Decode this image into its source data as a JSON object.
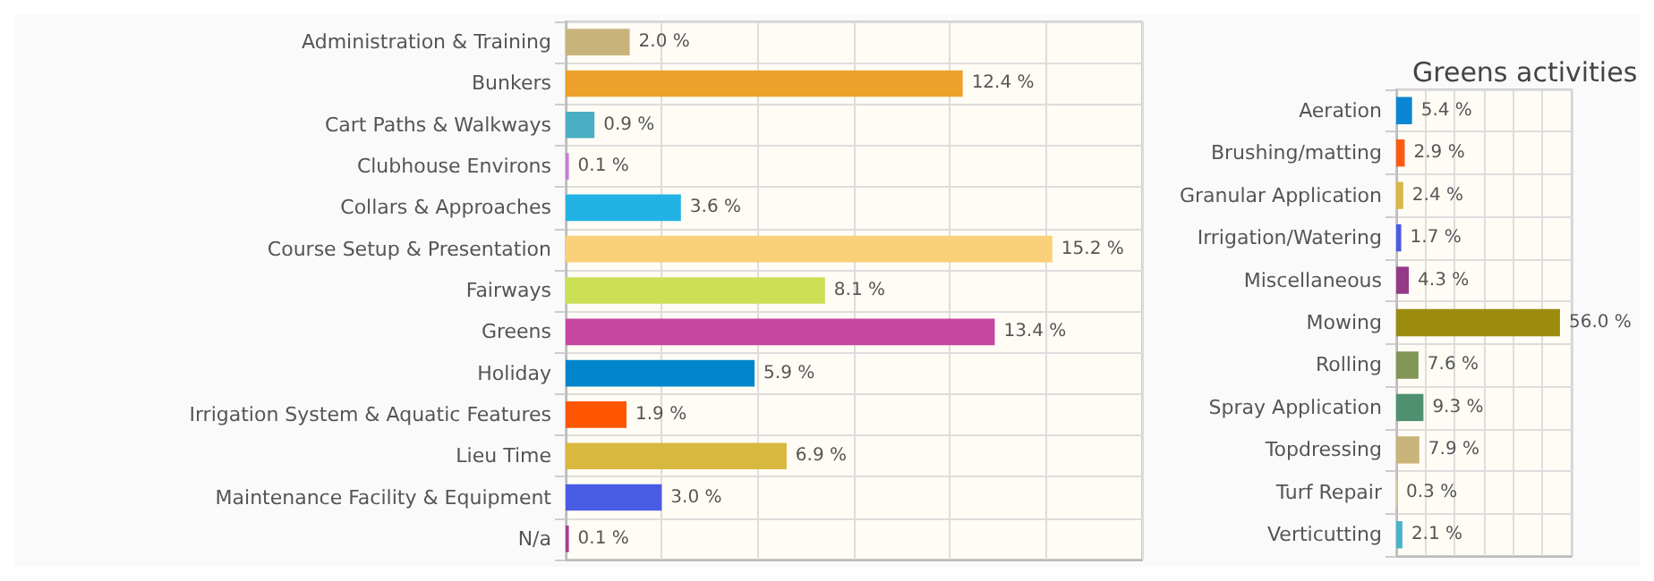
{
  "chart_data": [
    {
      "type": "bar",
      "orientation": "horizontal",
      "grid": true,
      "tick_labels": "y",
      "categories": [
        "Administration & Training",
        "Bunkers",
        "Cart Paths & Walkways",
        "Clubhouse Environs",
        "Collars & Approaches",
        "Course Setup & Presentation",
        "Fairways",
        "Greens",
        "Holiday",
        "Irrigation System & Aquatic Features",
        "Lieu Time",
        "Maintenance Facility & Equipment",
        "N/a"
      ],
      "values": [
        2.0,
        12.4,
        0.9,
        0.1,
        3.6,
        15.2,
        8.1,
        13.4,
        5.9,
        1.9,
        6.9,
        3.0,
        0.1
      ],
      "value_labels": [
        "2.0 %",
        "12.4 %",
        "0.9 %",
        "0.1 %",
        "3.6 %",
        "15.2 %",
        "8.1 %",
        "13.4 %",
        "5.9 %",
        "1.9 %",
        "6.9 %",
        "3.0 %",
        "0.1 %"
      ],
      "colors": [
        "#c8b47a",
        "#eba12a",
        "#4aafc4",
        "#c77ed8",
        "#22b2e3",
        "#fbd07a",
        "#cce055",
        "#c646a0",
        "#0085cc",
        "#fe5500",
        "#d9b840",
        "#4a5be4",
        "#a63c8a"
      ]
    },
    {
      "type": "bar",
      "orientation": "horizontal",
      "grid": true,
      "tick_labels": "y",
      "title": "Greens activities",
      "categories": [
        "Aeration",
        "Brushing/matting",
        "Granular Application",
        "Irrigation/Watering",
        "Miscellaneous",
        "Mowing",
        "Rolling",
        "Spray Application",
        "Topdressing",
        "Turf Repair",
        "Verticutting"
      ],
      "values": [
        5.4,
        2.9,
        2.4,
        1.7,
        4.3,
        56.0,
        7.6,
        9.3,
        7.9,
        0.3,
        2.1
      ],
      "value_labels": [
        "5.4 %",
        "2.9 %",
        "2.4 %",
        "1.7 %",
        "4.3 %",
        "56.0 %",
        "7.6 %",
        "9.3 %",
        "7.9 %",
        "0.3 %",
        "2.1 %"
      ],
      "colors": [
        "#0a86d3",
        "#fe5b12",
        "#d9b845",
        "#4a5be4",
        "#963a88",
        "#9b8c10",
        "#829658",
        "#4f9070",
        "#c8b47a",
        "#e0d0a0",
        "#4ab2c8"
      ]
    }
  ]
}
